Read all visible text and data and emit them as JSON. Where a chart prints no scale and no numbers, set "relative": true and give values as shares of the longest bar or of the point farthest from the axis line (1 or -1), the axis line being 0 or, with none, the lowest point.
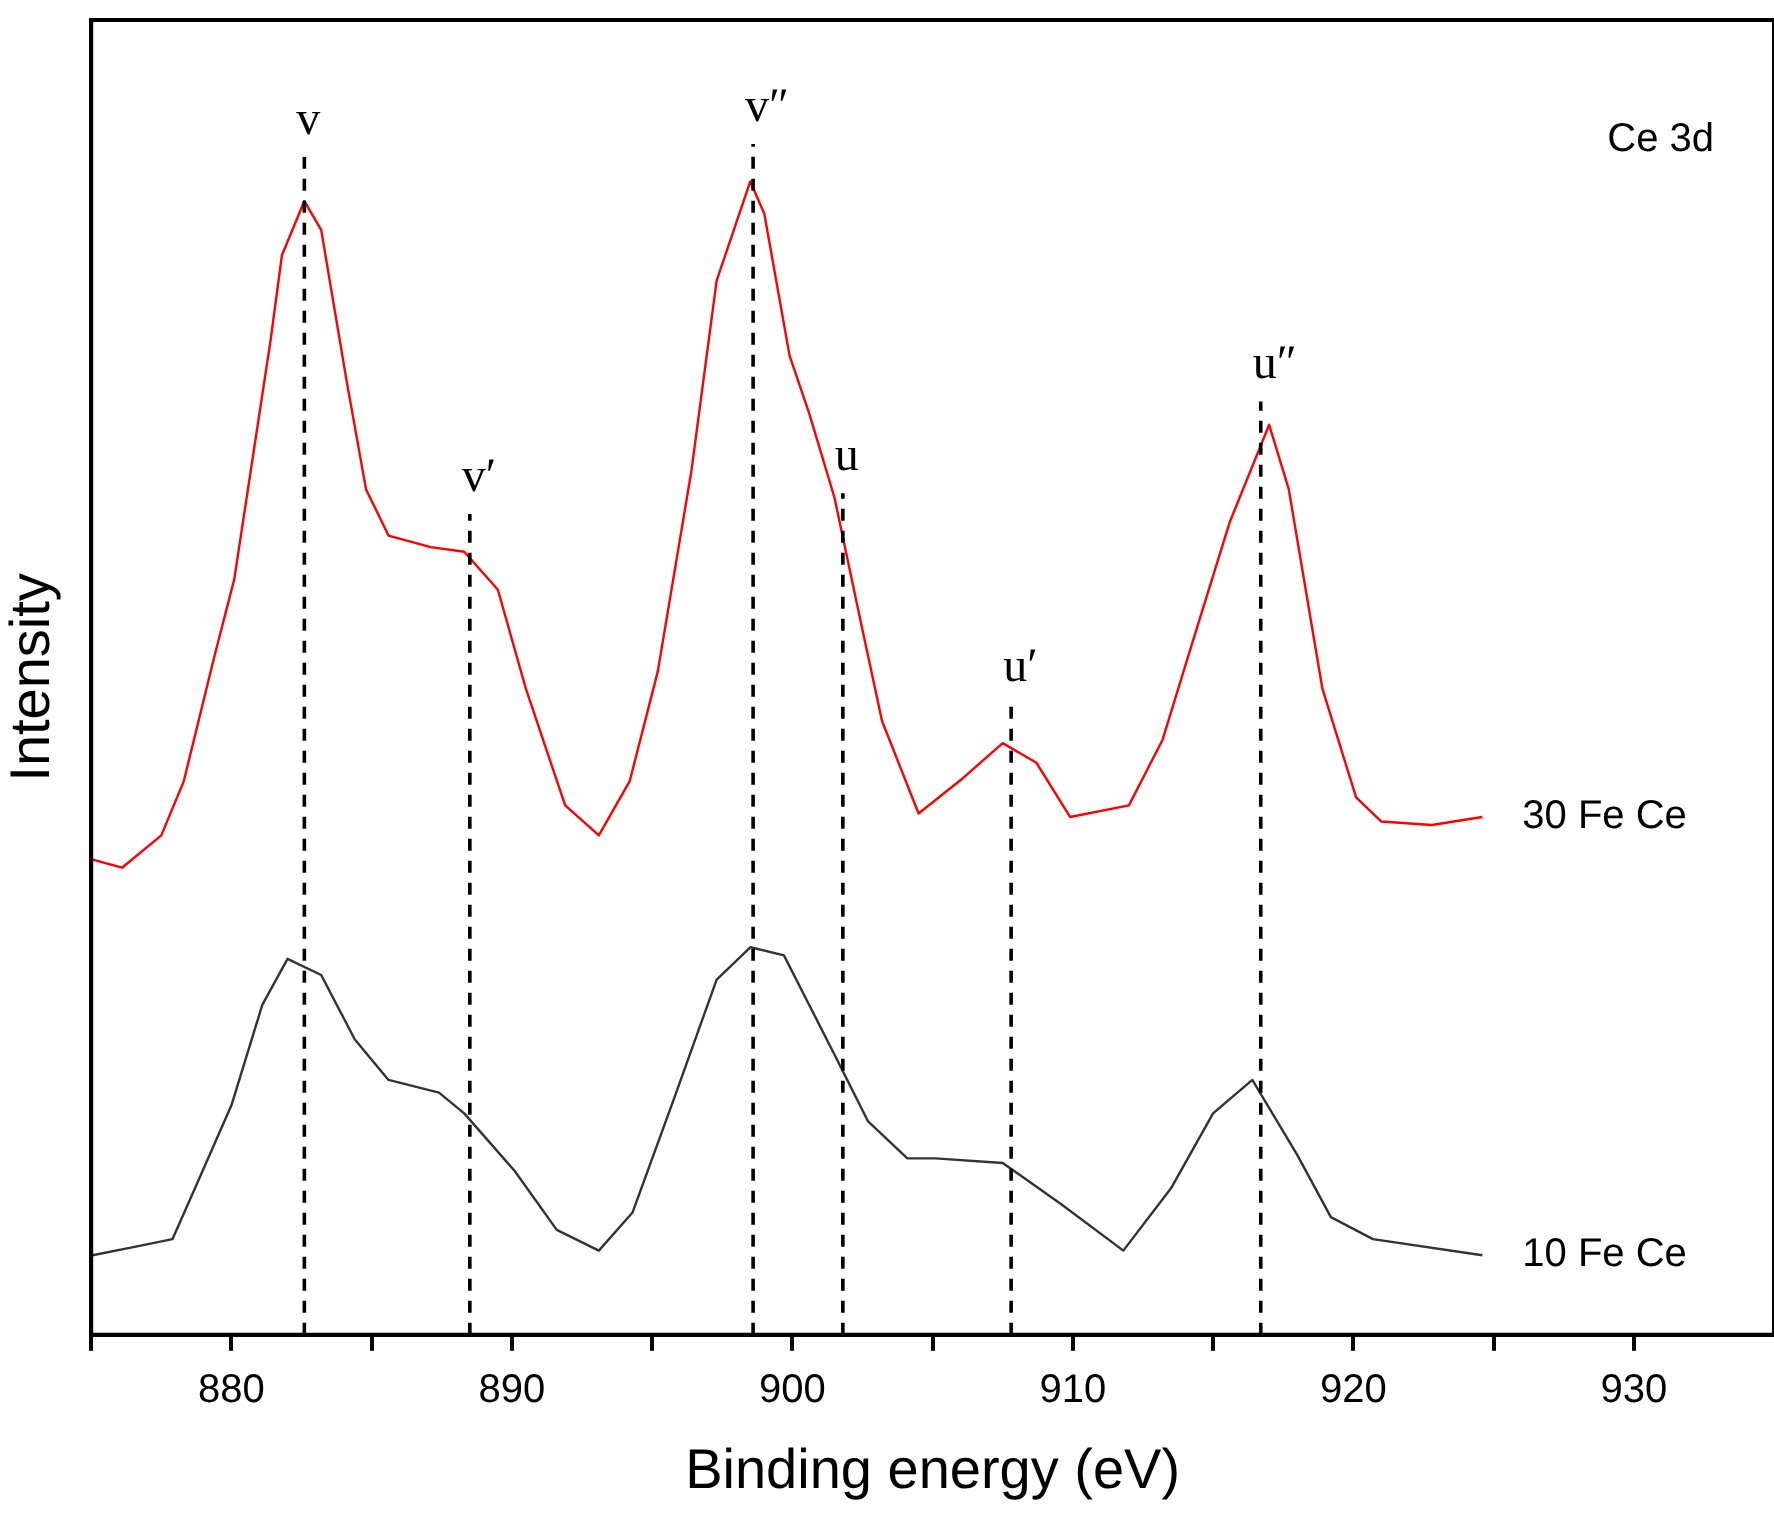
{
  "chart_data": {
    "type": "line",
    "xlabel": "Binding energy (eV)",
    "ylabel": "Intensity",
    "relative": true,
    "legend": false,
    "marker": "none",
    "grid": false,
    "xlim": [
      875,
      935
    ],
    "xticks": [
      {
        "value": 875,
        "label": null
      },
      880,
      {
        "value": 885,
        "label": null
      },
      890,
      {
        "value": 895,
        "label": null
      },
      900,
      {
        "value": 905,
        "label": null
      },
      910,
      {
        "value": 915,
        "label": null
      },
      920,
      {
        "value": 925,
        "label": null
      },
      930
    ],
    "annotations": [
      "Ce 3d"
    ],
    "ref_lines": [
      {
        "axis": "x",
        "value": 882.6,
        "label": "v",
        "color": "#000000",
        "line_style": "dashed"
      },
      {
        "axis": "x",
        "value": 888.5,
        "label": "v′",
        "color": "#000000",
        "line_style": "dashed"
      },
      {
        "axis": "x",
        "value": 898.6,
        "label": "v″",
        "color": "#000000",
        "line_style": "dashed"
      },
      {
        "axis": "x",
        "value": 901.8,
        "label": "u",
        "color": "#000000",
        "line_style": "dashed"
      },
      {
        "axis": "x",
        "value": 907.8,
        "label": "u′",
        "color": "#000000",
        "line_style": "dashed"
      },
      {
        "axis": "x",
        "value": 916.7,
        "label": "u″",
        "color": "#000000",
        "line_style": "dashed"
      }
    ],
    "series": [
      {
        "name": "30 Fe Ce",
        "color": "#ff0000",
        "x": [
          875.05,
          876.1,
          877.5,
          878.3,
          879.4,
          880.1,
          881.4,
          881.8,
          882.6,
          883.2,
          884.1,
          884.8,
          885.6,
          887.1,
          888.3,
          889.5,
          890.5,
          891.9,
          893.1,
          894.2,
          895.2,
          896.4,
          897.3,
          898.5,
          899.0,
          899.9,
          900.6,
          901.5,
          902.5,
          903.2,
          904.5,
          906.0,
          907.5,
          908.7,
          909.9,
          912.0,
          913.2,
          914.4,
          915.6,
          917.0,
          917.7,
          918.9,
          920.1,
          921.0,
          922.8,
          924.6
        ],
        "values": [
          0.412,
          0.405,
          0.433,
          0.48,
          0.589,
          0.655,
          0.863,
          0.936,
          0.983,
          0.958,
          0.828,
          0.733,
          0.693,
          0.683,
          0.679,
          0.646,
          0.56,
          0.459,
          0.433,
          0.48,
          0.575,
          0.749,
          0.914,
          1.0,
          0.972,
          0.849,
          0.799,
          0.726,
          0.611,
          0.532,
          0.452,
          0.481,
          0.513,
          0.496,
          0.449,
          0.459,
          0.516,
          0.611,
          0.705,
          0.789,
          0.733,
          0.56,
          0.466,
          0.445,
          0.442,
          0.449
        ]
      },
      {
        "name": "10 Fe Ce",
        "color": "#333333",
        "x": [
          875.05,
          876.5,
          877.9,
          878.7,
          880.0,
          881.1,
          882.0,
          883.2,
          884.4,
          885.6,
          887.4,
          888.3,
          890.1,
          891.6,
          893.1,
          894.3,
          895.8,
          897.3,
          898.5,
          899.7,
          900.6,
          901.5,
          902.7,
          904.1,
          905.1,
          907.5,
          909.6,
          911.8,
          913.5,
          915.0,
          916.4,
          918.0,
          919.2,
          920.7,
          924.6
        ],
        "values": [
          0.069,
          0.076,
          0.083,
          0.127,
          0.199,
          0.286,
          0.326,
          0.312,
          0.256,
          0.221,
          0.21,
          0.192,
          0.142,
          0.091,
          0.073,
          0.106,
          0.206,
          0.308,
          0.336,
          0.329,
          0.286,
          0.243,
          0.185,
          0.153,
          0.153,
          0.149,
          0.113,
          0.073,
          0.127,
          0.192,
          0.221,
          0.156,
          0.102,
          0.083,
          0.069
        ]
      }
    ]
  }
}
